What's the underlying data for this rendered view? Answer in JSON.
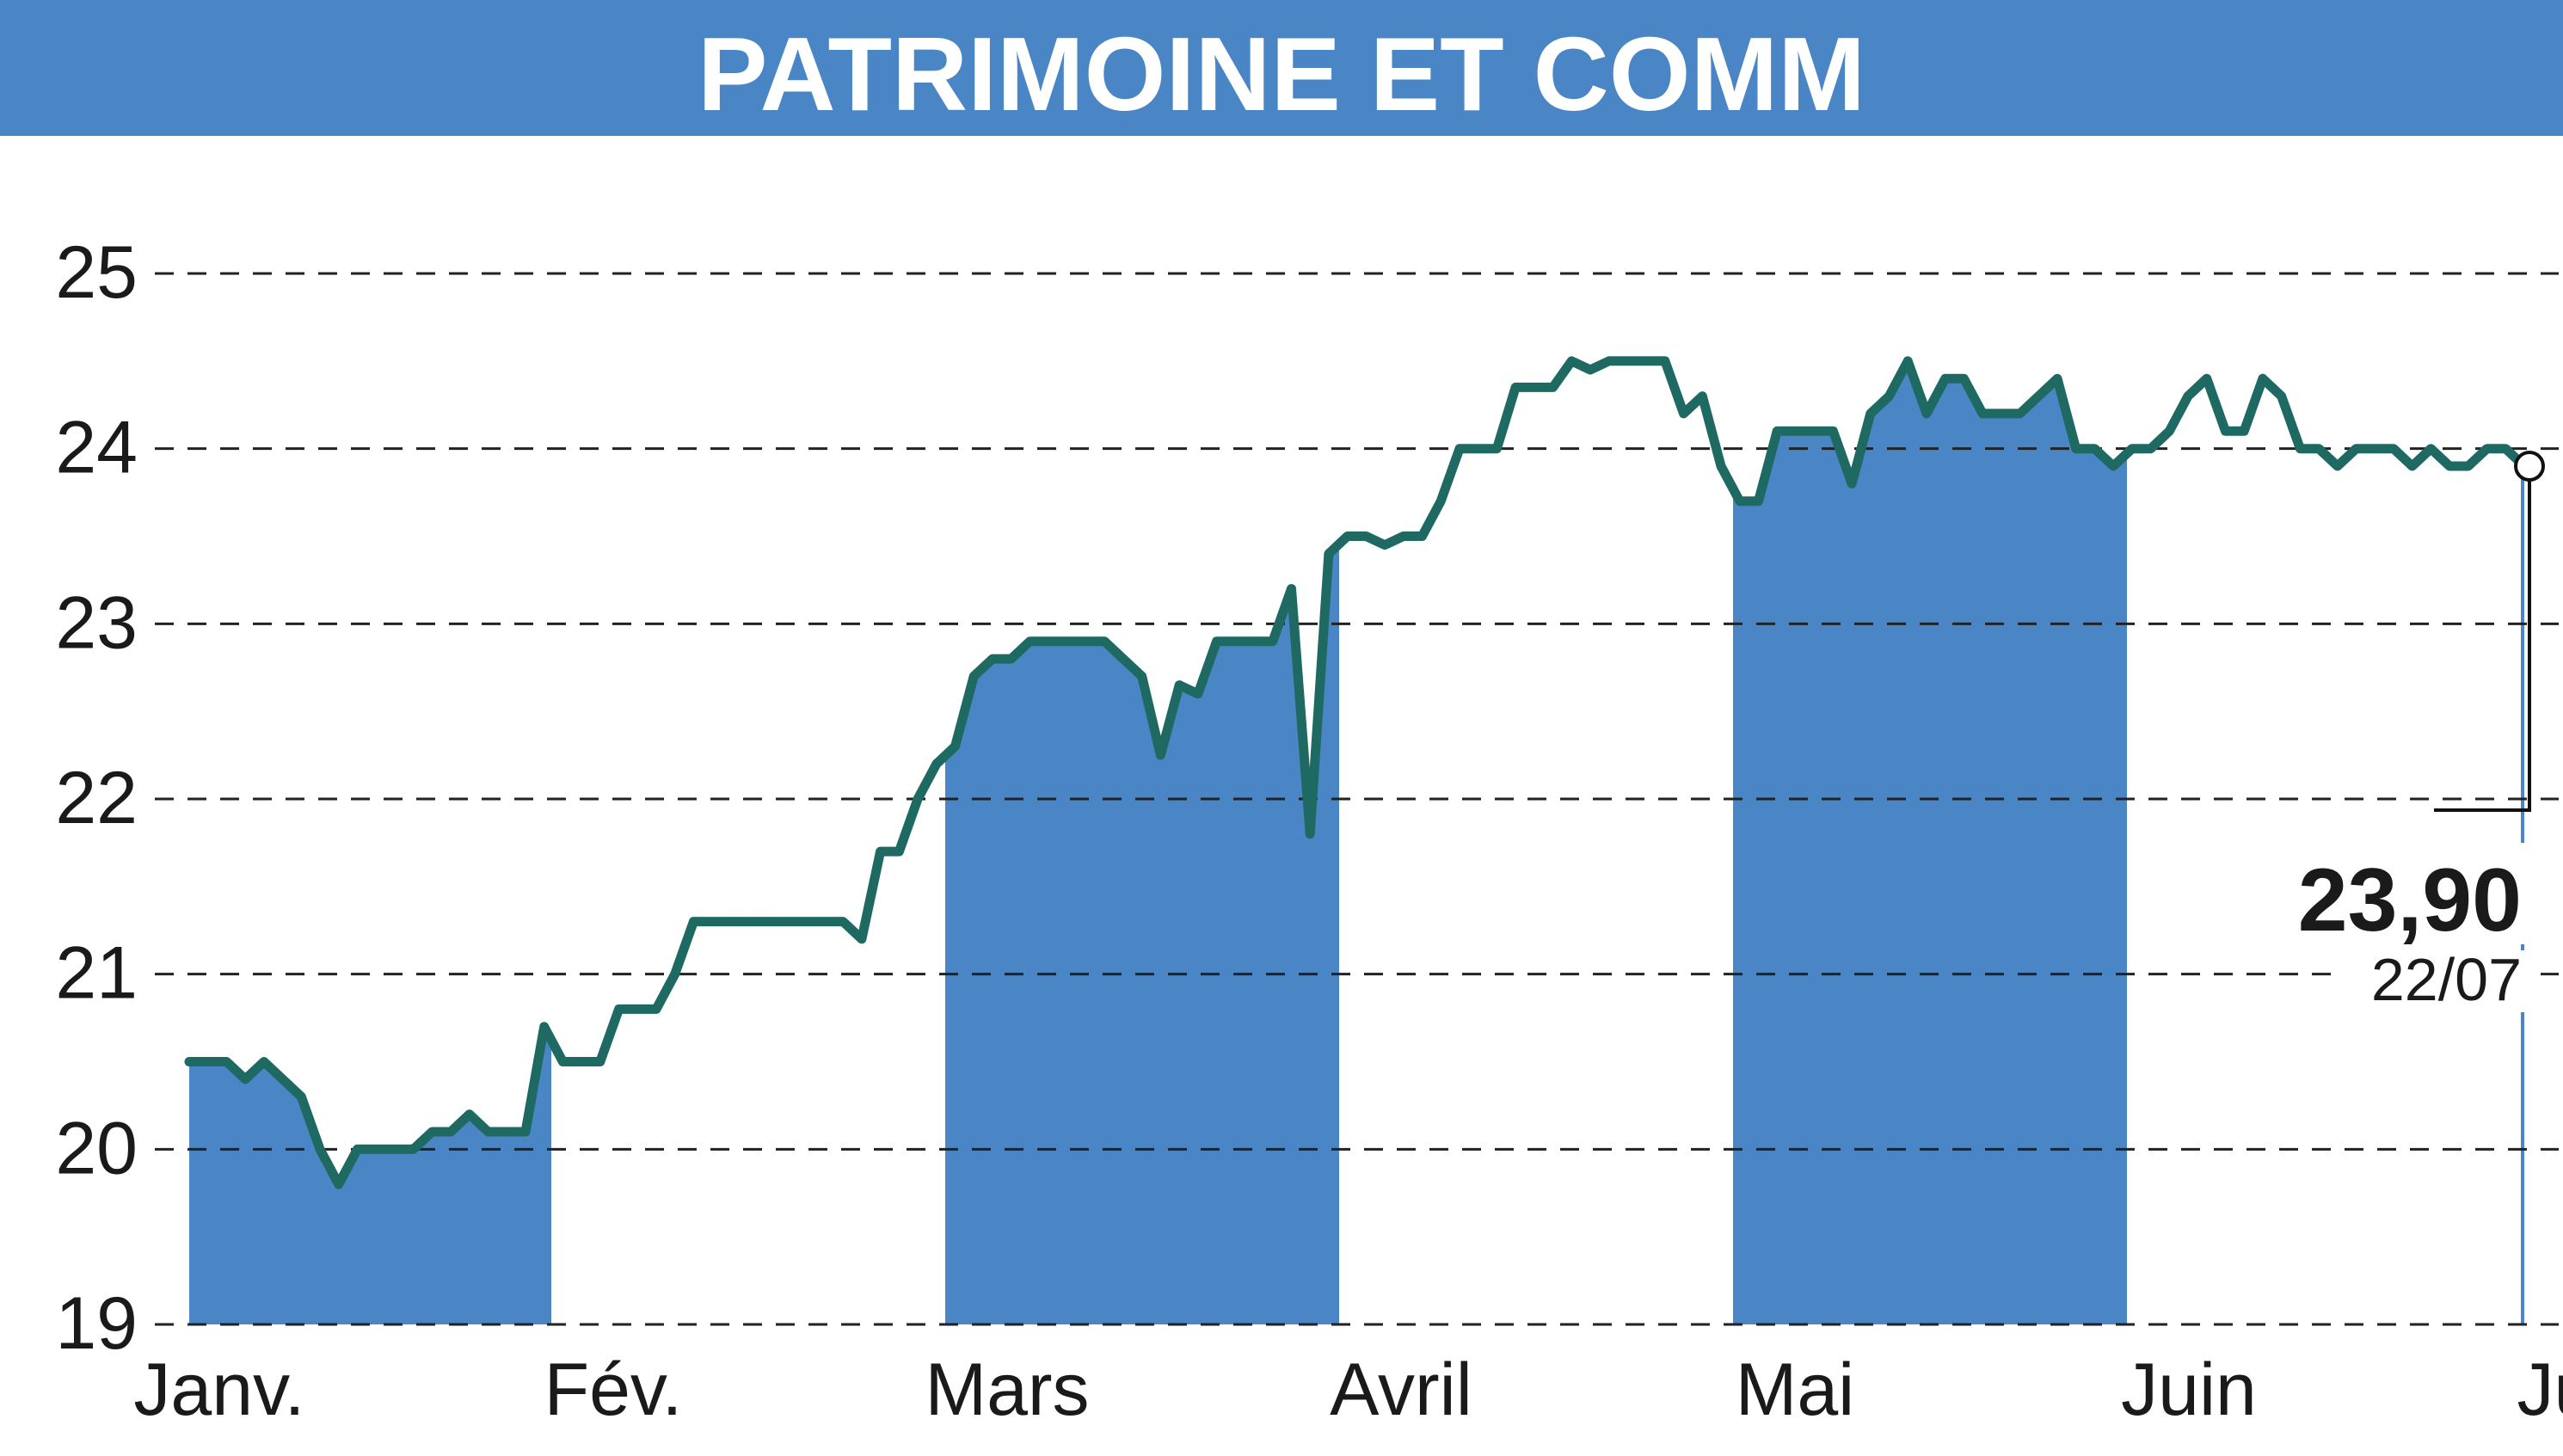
{
  "chart_data": {
    "type": "line",
    "title": "PATRIMOINE ET COMM",
    "x_labels": [
      "Janv.",
      "Fév.",
      "Mars",
      "Avril",
      "Mai",
      "Juin",
      "Juil."
    ],
    "yticks": [
      19,
      20,
      21,
      22,
      23,
      24,
      25
    ],
    "ylim": [
      19,
      25
    ],
    "grid": true,
    "last_value": "23,90",
    "last_date": "22/07",
    "colors": {
      "band": "#4a86c5",
      "line": "#1e6a62",
      "grid": "#222222",
      "header": "#4a86c5"
    },
    "month_bands_shaded": [
      "Janv.",
      "Mars",
      "Mai",
      "Juil."
    ],
    "series": [
      {
        "values": [
          20.5,
          20.5,
          20.5,
          20.4,
          20.5,
          20.4,
          20.3,
          20.0,
          19.8,
          20.0,
          20.0,
          20.0,
          20.0,
          20.1,
          20.1,
          20.2,
          20.1,
          20.1,
          20.1,
          20.7,
          20.5,
          20.5,
          20.5,
          20.8,
          20.8,
          20.8,
          21.0,
          21.3,
          21.3,
          21.3,
          21.3,
          21.3,
          21.3,
          21.3,
          21.3,
          21.3,
          21.2,
          21.7,
          21.7,
          22.0,
          22.2,
          22.3,
          22.7,
          22.8,
          22.8,
          22.9,
          22.9,
          22.9,
          22.9,
          22.9,
          22.8,
          22.7,
          22.25,
          22.65,
          22.6,
          22.9,
          22.9,
          22.9,
          22.9,
          23.2,
          21.8,
          23.4,
          23.5,
          23.5,
          23.45,
          23.5,
          23.5,
          23.7,
          24.0,
          24.0,
          24.0,
          24.35,
          24.35,
          24.35,
          24.5,
          24.45,
          24.5,
          24.5,
          24.5,
          24.5,
          24.2,
          24.3,
          23.9,
          23.7,
          23.7,
          24.1,
          24.1,
          24.1,
          24.1,
          23.8,
          24.2,
          24.3,
          24.5,
          24.2,
          24.4,
          24.4,
          24.2,
          24.2,
          24.2,
          24.3,
          24.4,
          24.0,
          24.0,
          23.9,
          24.0,
          24.0,
          24.1,
          24.3,
          24.4,
          24.1,
          24.1,
          24.4,
          24.3,
          24.0,
          24.0,
          23.9,
          24.0,
          24.0,
          24.0,
          23.9,
          24.0,
          23.9,
          23.9,
          24.0,
          24.0,
          23.9
        ]
      }
    ]
  }
}
